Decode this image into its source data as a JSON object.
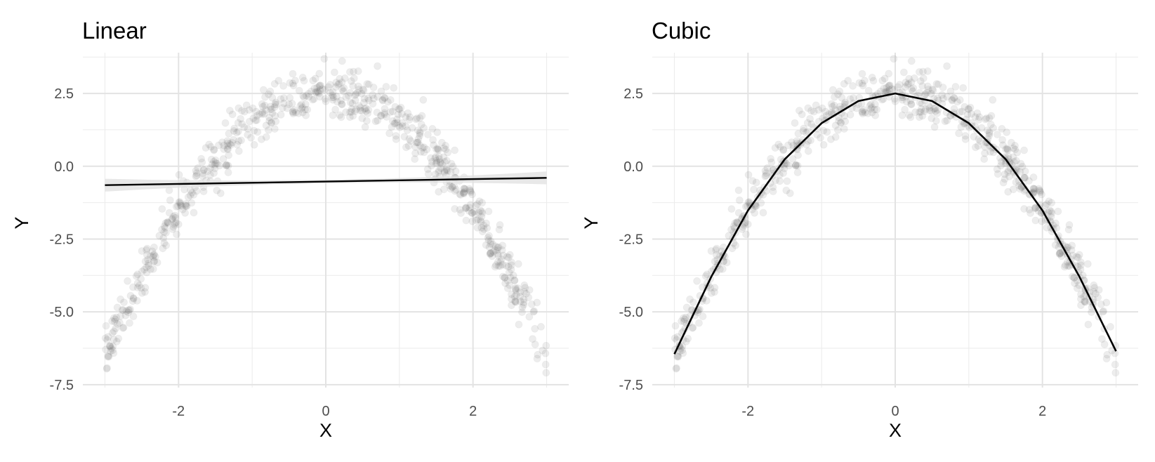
{
  "chart_data": [
    {
      "type": "scatter",
      "title": "Linear",
      "xlabel": "X",
      "ylabel": "Y",
      "xlim": [
        -3.3,
        3.3
      ],
      "ylim": [
        -7.6,
        3.9
      ],
      "x_ticks": [
        -2,
        0,
        2
      ],
      "x_tick_labels": [
        "-2",
        "0",
        "2"
      ],
      "y_ticks": [
        -7.5,
        -5.0,
        -2.5,
        0.0,
        2.5
      ],
      "y_tick_labels": [
        "-7.5",
        "-5.0",
        "-2.5",
        "0.0",
        "2.5"
      ],
      "grid": true,
      "legend": "none",
      "point_color": "#4d4d4d",
      "point_alpha": 0.1,
      "points": {
        "description_x_range": [
          -3,
          3
        ],
        "generator": "y = 2.5 - x^2 + noise",
        "noise_sd": 0.45,
        "n": 700
      },
      "fit": {
        "model": "linear",
        "x": [
          -3,
          3
        ],
        "y": [
          -0.65,
          -0.4
        ],
        "ci_halfwidth": [
          0.22,
          0.22
        ],
        "line_color": "#000000",
        "band_color": "#e0e0e0"
      }
    },
    {
      "type": "scatter",
      "title": "Cubic",
      "xlabel": "X",
      "ylabel": "Y",
      "xlim": [
        -3.3,
        3.3
      ],
      "ylim": [
        -7.6,
        3.9
      ],
      "x_ticks": [
        -2,
        0,
        2
      ],
      "x_tick_labels": [
        "-2",
        "0",
        "2"
      ],
      "y_ticks": [
        -7.5,
        -5.0,
        -2.5,
        0.0,
        2.5
      ],
      "y_tick_labels": [
        "-7.5",
        "-5.0",
        "-2.5",
        "0.0",
        "2.5"
      ],
      "grid": true,
      "legend": "none",
      "point_color": "#4d4d4d",
      "point_alpha": 0.1,
      "points": {
        "description_x_range": [
          -3,
          3
        ],
        "generator": "y = 2.5 - x^2 + noise",
        "noise_sd": 0.45,
        "n": 700
      },
      "fit": {
        "model": "cubic",
        "x": [
          -3,
          -2.5,
          -2,
          -1.5,
          -1,
          -0.5,
          0,
          0.5,
          1,
          1.5,
          2,
          2.5,
          3
        ],
        "y": [
          -6.45,
          -3.8,
          -1.52,
          0.24,
          1.48,
          2.24,
          2.5,
          2.24,
          1.48,
          0.24,
          -1.52,
          -3.78,
          -6.35
        ],
        "line_color": "#000000"
      }
    }
  ]
}
